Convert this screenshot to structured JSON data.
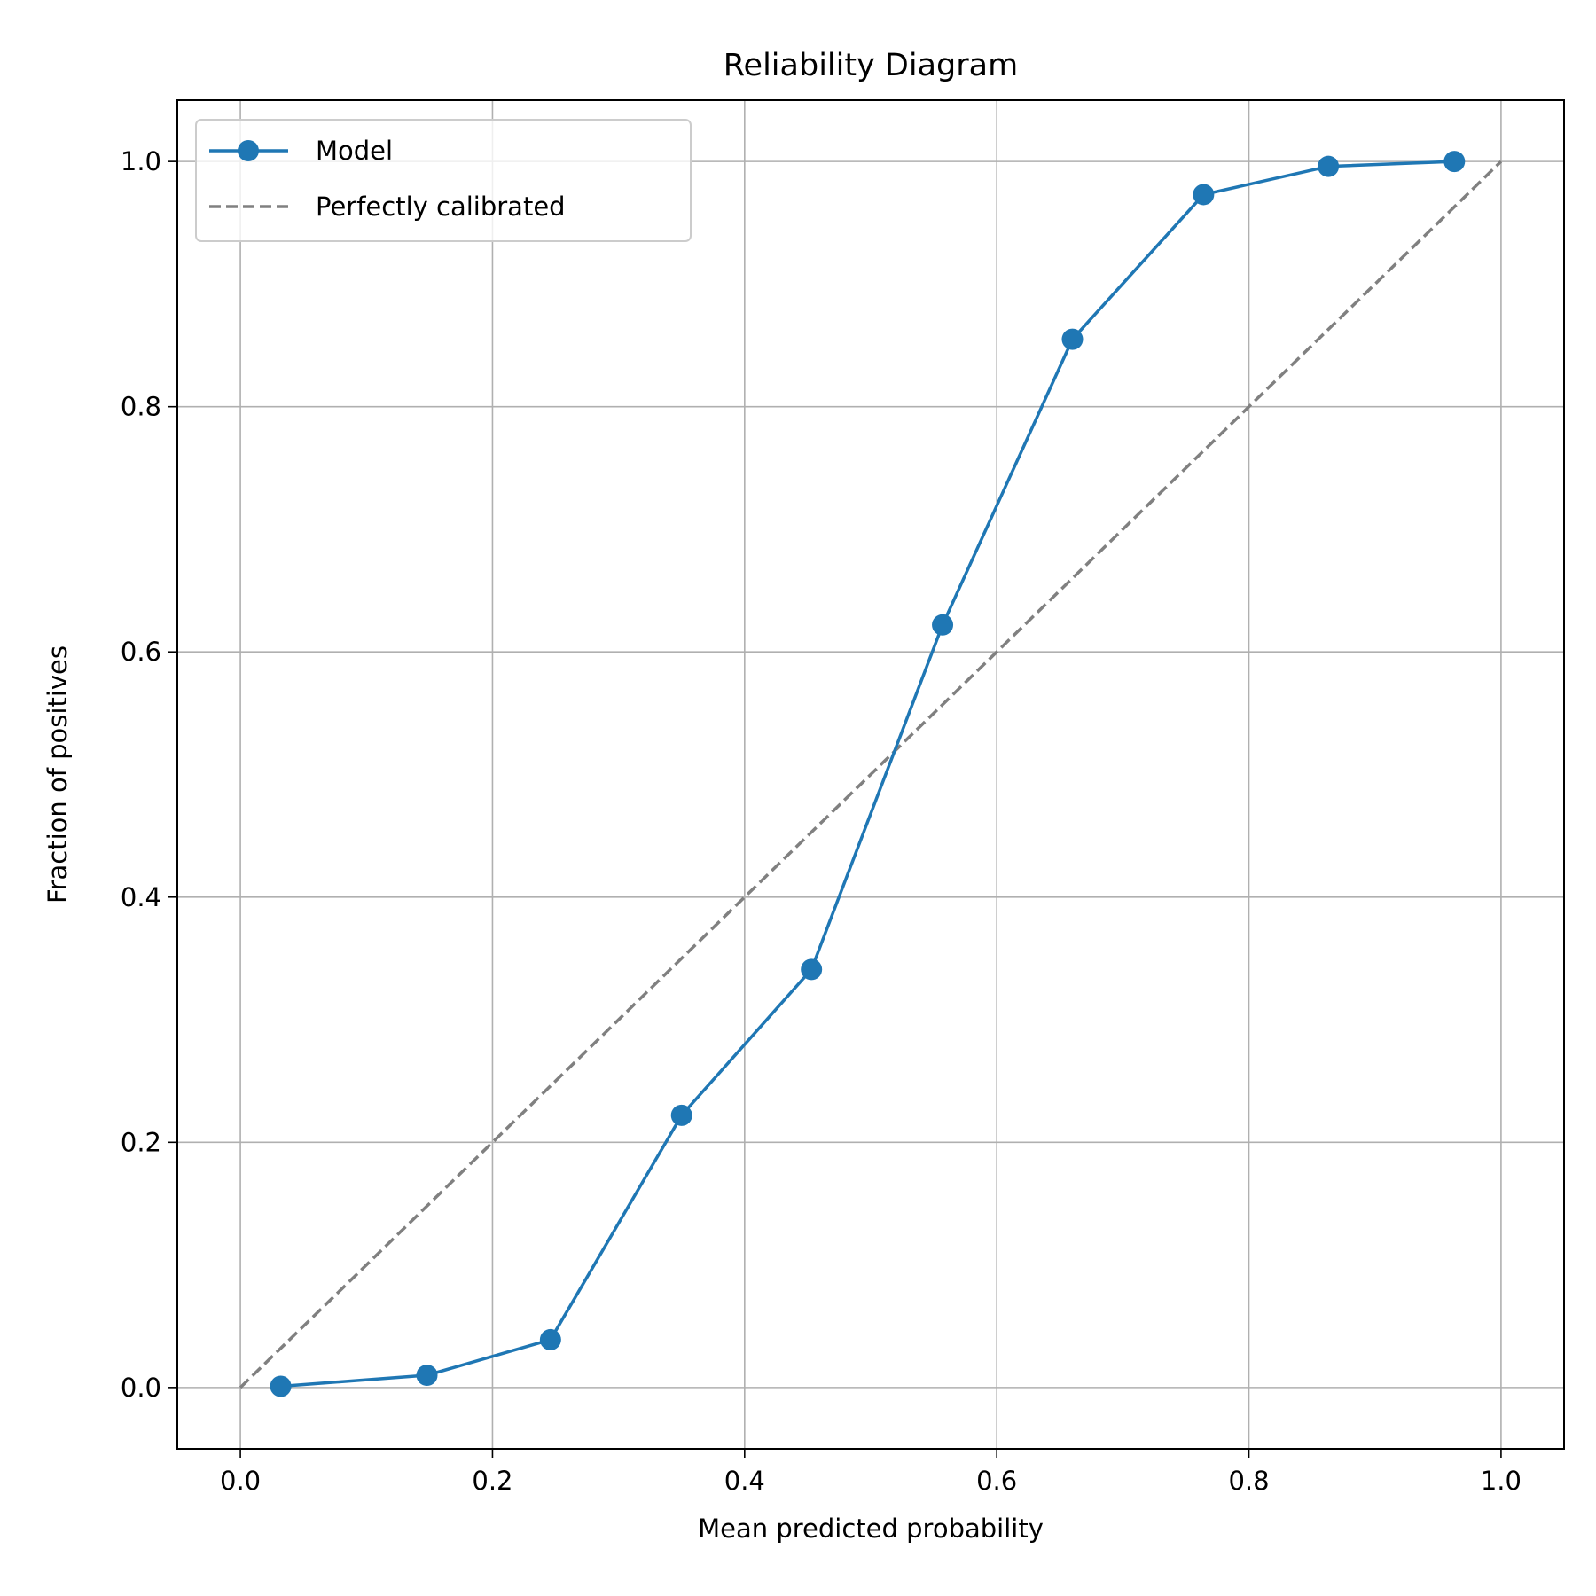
{
  "chart_data": {
    "type": "line",
    "title": "Reliability Diagram",
    "xlabel": "Mean predicted probability",
    "ylabel": "Fraction of positives",
    "xlim": [
      -0.05,
      1.05
    ],
    "ylim": [
      -0.05,
      1.05
    ],
    "xticks": [
      0.0,
      0.2,
      0.4,
      0.6,
      0.8,
      1.0
    ],
    "yticks": [
      0.0,
      0.2,
      0.4,
      0.6,
      0.8,
      1.0
    ],
    "xtick_labels": [
      "0.0",
      "0.2",
      "0.4",
      "0.6",
      "0.8",
      "1.0"
    ],
    "ytick_labels": [
      "0.0",
      "0.2",
      "0.4",
      "0.6",
      "0.8",
      "1.0"
    ],
    "grid": true,
    "legend_position": "top-left",
    "series": [
      {
        "name": "Model",
        "style": "solid-with-markers",
        "color": "#1f77b4",
        "x": [
          0.032,
          0.148,
          0.246,
          0.35,
          0.453,
          0.557,
          0.66,
          0.764,
          0.863,
          0.963
        ],
        "y": [
          0.001,
          0.01,
          0.039,
          0.222,
          0.341,
          0.622,
          0.855,
          0.973,
          0.996,
          1.0
        ]
      },
      {
        "name": "Perfectly calibrated",
        "style": "dashed",
        "color": "#808080",
        "x": [
          0.0,
          1.0
        ],
        "y": [
          0.0,
          1.0
        ]
      }
    ]
  }
}
